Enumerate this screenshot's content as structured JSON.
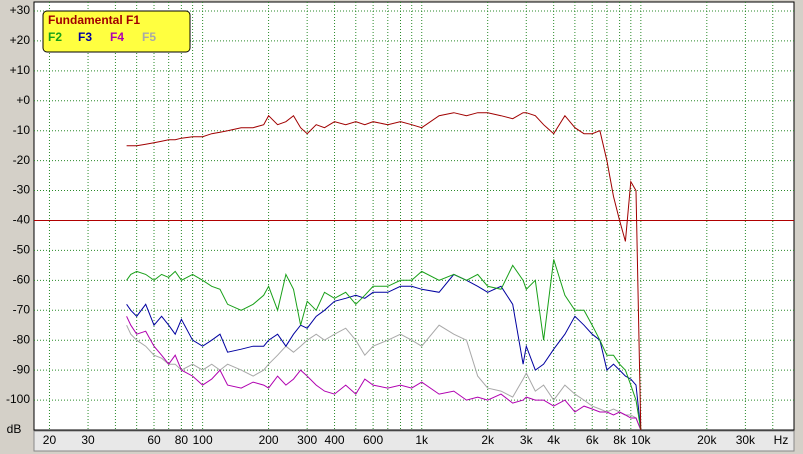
{
  "chart_data": {
    "type": "line",
    "x_scale": "log",
    "y_unit": "dB",
    "x_unit": "Hz",
    "xlim": [
      17,
      50000
    ],
    "ylim": [
      -110,
      33
    ],
    "grid": true,
    "legend": "top-left",
    "xticks": [
      20,
      30,
      60,
      80,
      100,
      200,
      300,
      400,
      600,
      {
        "value": 1000,
        "label": "1k"
      },
      {
        "value": 2000,
        "label": "2k"
      },
      {
        "value": 3000,
        "label": "3k"
      },
      {
        "value": 4000,
        "label": "4k"
      },
      {
        "value": 6000,
        "label": "6k"
      },
      {
        "value": 8000,
        "label": "8k"
      },
      {
        "value": 10000,
        "label": "10k"
      },
      {
        "value": 20000,
        "label": "20k"
      },
      {
        "value": 30000,
        "label": "30k"
      }
    ],
    "xminor": [
      40,
      50,
      70,
      90,
      500,
      700,
      800,
      900,
      5000,
      7000,
      9000,
      40000
    ],
    "yticks": [
      {
        "value": 30,
        "label": "+30"
      },
      {
        "value": 20,
        "label": "+20"
      },
      {
        "value": 10,
        "label": "+10"
      },
      {
        "value": 0,
        "label": "+0"
      },
      -10,
      -20,
      -30,
      -40,
      -50,
      -60,
      -70,
      -80,
      -90,
      -100
    ],
    "reference_lines": [
      {
        "value": -40,
        "color": "#b00000"
      }
    ],
    "x": [
      45,
      47,
      50,
      55,
      60,
      65,
      70,
      75,
      80,
      90,
      100,
      110,
      120,
      130,
      150,
      170,
      190,
      200,
      220,
      240,
      260,
      280,
      300,
      330,
      360,
      400,
      450,
      500,
      550,
      600,
      700,
      800,
      900,
      1000,
      1200,
      1400,
      1600,
      1800,
      2000,
      2300,
      2600,
      2900,
      3000,
      3300,
      3600,
      4000,
      4500,
      5000,
      5500,
      6000,
      6500,
      7000,
      7500,
      8000,
      8500,
      9000,
      9500,
      10000
    ],
    "series": [
      {
        "name": "Fundamental F1",
        "color": "#a00000",
        "values": [
          -15,
          -15,
          -15,
          -14.5,
          -14,
          -13.5,
          -13,
          -13,
          -12.5,
          -12,
          -12,
          -11,
          -10.5,
          -10,
          -9,
          -9,
          -8,
          -5,
          -8,
          -7,
          -5,
          -9,
          -11,
          -8,
          -9,
          -7,
          -8,
          -7,
          -8,
          -7,
          -8,
          -7,
          -8,
          -9,
          -5,
          -4,
          -5,
          -4,
          -4,
          -5,
          -6,
          -4,
          -4,
          -5,
          -8,
          -11,
          -5,
          -9,
          -11,
          -11,
          -10,
          -20,
          -32,
          -40,
          -47,
          -27,
          -30,
          -110
        ]
      },
      {
        "name": "F2",
        "color": "#18a018",
        "values": [
          -60,
          -58,
          -57,
          -58,
          -60,
          -58,
          -59,
          -57,
          -60,
          -58,
          -60,
          -62,
          -63,
          -68,
          -70,
          -68,
          -65,
          -62,
          -70,
          -58,
          -63,
          -75,
          -67,
          -70,
          -64,
          -66,
          -64,
          -68,
          -65,
          -62,
          -62,
          -60,
          -60,
          -57,
          -60,
          -58,
          -60,
          -58,
          -62,
          -63,
          -55,
          -60,
          -63,
          -60,
          -80,
          -53,
          -65,
          -70,
          -70,
          -75,
          -80,
          -85,
          -85,
          -88,
          -90,
          -95,
          -100,
          -110
        ]
      },
      {
        "name": "F3",
        "color": "#0000a0",
        "values": [
          -68,
          -70,
          -72,
          -68,
          -75,
          -72,
          -75,
          -78,
          -73,
          -80,
          -82,
          -80,
          -78,
          -84,
          -83,
          -82,
          -82,
          -80,
          -78,
          -82,
          -78,
          -75,
          -76,
          -72,
          -70,
          -67,
          -66,
          -65,
          -66,
          -64,
          -64,
          -62,
          -62,
          -63,
          -64,
          -58,
          -60,
          -62,
          -64,
          -62,
          -68,
          -88,
          -82,
          -90,
          -88,
          -83,
          -78,
          -72,
          -75,
          -78,
          -80,
          -90,
          -88,
          -90,
          -92,
          -93,
          -95,
          -110
        ]
      },
      {
        "name": "F4",
        "color": "#b000b0",
        "values": [
          -72,
          -75,
          -78,
          -77,
          -82,
          -85,
          -88,
          -85,
          -90,
          -92,
          -95,
          -93,
          -90,
          -95,
          -96,
          -94,
          -95,
          -96,
          -92,
          -95,
          -93,
          -90,
          -92,
          -95,
          -97,
          -98,
          -95,
          -98,
          -93,
          -95,
          -96,
          -95,
          -96,
          -94,
          -98,
          -97,
          -100,
          -99,
          -100,
          -98,
          -101,
          -100,
          -99,
          -100,
          -100,
          -102,
          -100,
          -104,
          -102,
          -103,
          -104,
          -104,
          -105,
          -104,
          -105,
          -106,
          -106,
          -110
        ]
      },
      {
        "name": "F5",
        "color": "#a8a8a8",
        "values": [
          -75,
          -78,
          -80,
          -82,
          -85,
          -86,
          -88,
          -88,
          -90,
          -88,
          -90,
          -88,
          -90,
          -88,
          -90,
          -92,
          -90,
          -88,
          -85,
          -82,
          -84,
          -82,
          -80,
          -78,
          -80,
          -78,
          -76,
          -80,
          -85,
          -82,
          -80,
          -78,
          -80,
          -82,
          -75,
          -78,
          -80,
          -92,
          -96,
          -97,
          -99,
          -93,
          -91,
          -97,
          -95,
          -100,
          -95,
          -98,
          -100,
          -102,
          -103,
          -104,
          -103,
          -104,
          -105,
          -105,
          -106,
          -110
        ]
      }
    ]
  }
}
